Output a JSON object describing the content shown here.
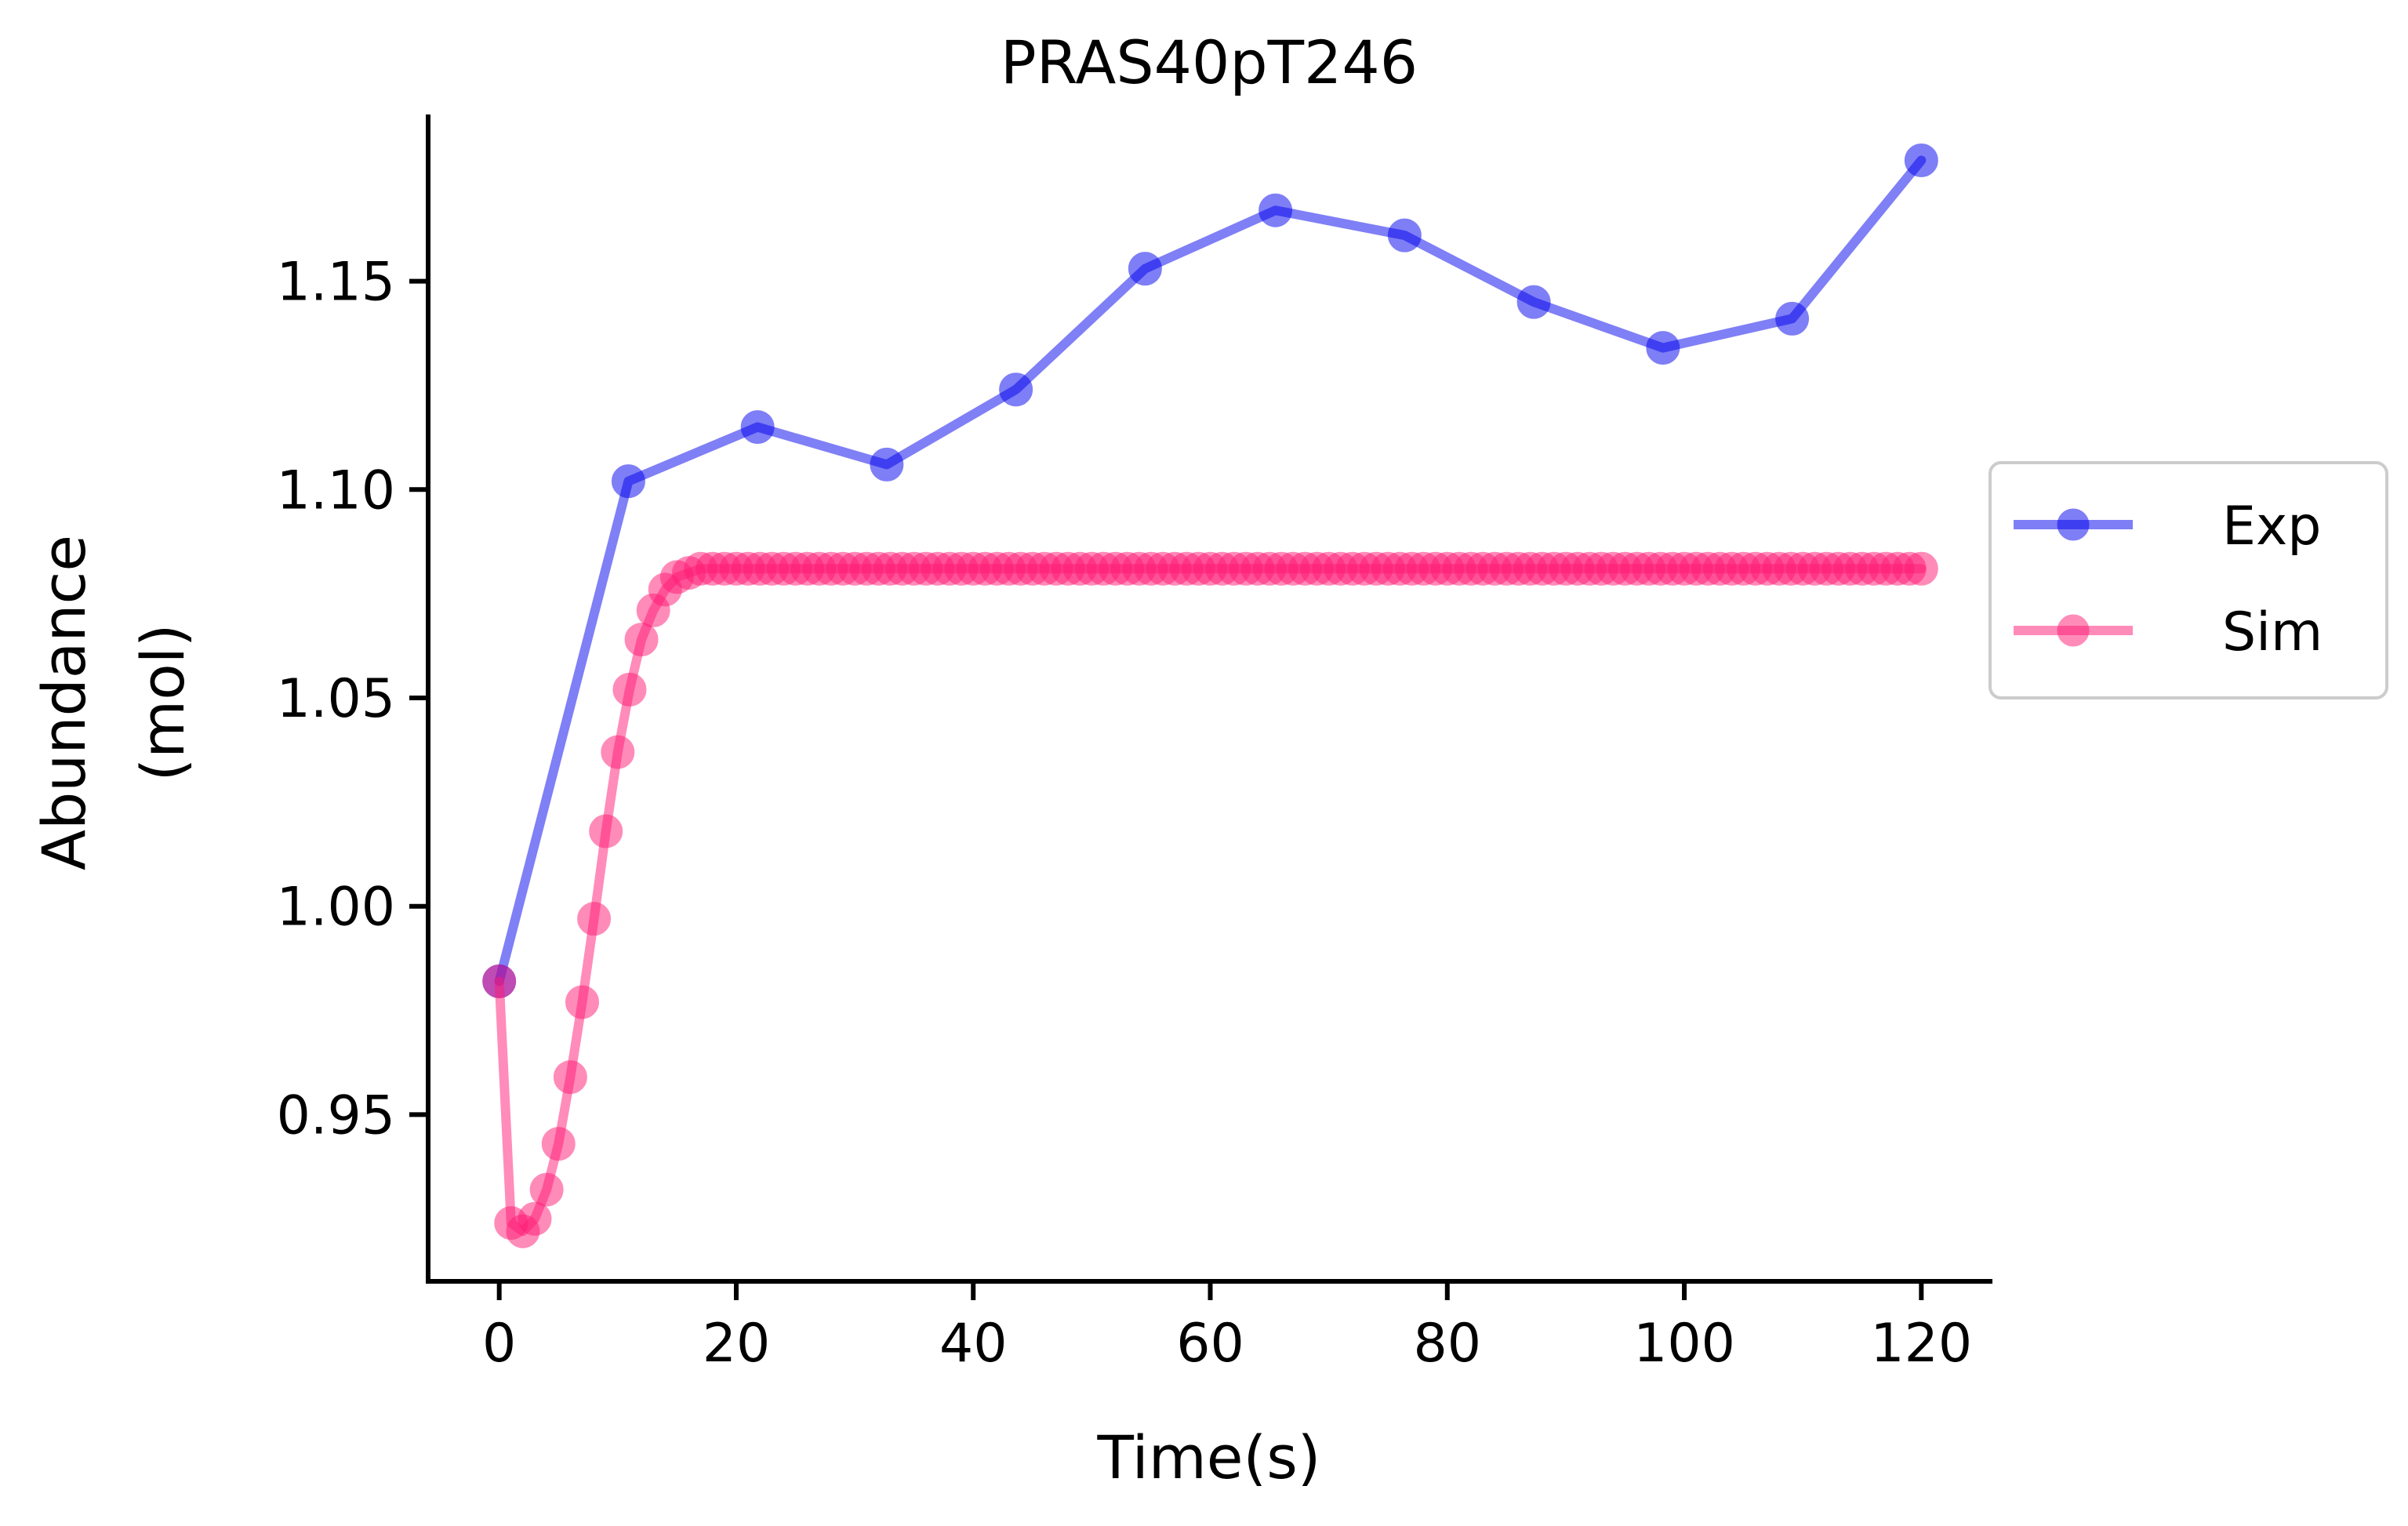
{
  "chart_data": {
    "type": "line",
    "title": "PRAS40pT246",
    "xlabel": "Time(s)",
    "ylabel": [
      "Abundance",
      "(mol)"
    ],
    "xlim": [
      -6,
      126
    ],
    "ylim": [
      0.91,
      1.19
    ],
    "x_ticks": [
      0,
      20,
      40,
      60,
      80,
      100,
      120
    ],
    "y_ticks": [
      0.95,
      1.0,
      1.05,
      1.1,
      1.15
    ],
    "x_tick_labels": [
      "0",
      "20",
      "40",
      "60",
      "80",
      "100",
      "120"
    ],
    "y_tick_labels": [
      "0.95",
      "1.00",
      "1.05",
      "1.10",
      "1.15"
    ],
    "grid": false,
    "legend_position": "center-right outside",
    "series": [
      {
        "name": "Exp",
        "color": "#0000ee",
        "x": [
          0,
          10.9,
          21.8,
          32.7,
          43.6,
          54.5,
          65.5,
          76.4,
          87.3,
          98.2,
          109.1,
          120
        ],
        "y": [
          0.982,
          1.102,
          1.115,
          1.106,
          1.124,
          1.153,
          1.167,
          1.161,
          1.145,
          1.134,
          1.141,
          1.179
        ]
      },
      {
        "name": "Sim",
        "color": "#ff1a75",
        "x": [
          0,
          1,
          2,
          3,
          4,
          5,
          6,
          7,
          8,
          9,
          10,
          11,
          12,
          13,
          14,
          15,
          16,
          17,
          18,
          19,
          20,
          21,
          22,
          23,
          24,
          25,
          26,
          27,
          28,
          29,
          30,
          31,
          32,
          33,
          34,
          35,
          36,
          37,
          38,
          39,
          40,
          41,
          42,
          43,
          44,
          45,
          46,
          47,
          48,
          49,
          50,
          51,
          52,
          53,
          54,
          55,
          56,
          57,
          58,
          59,
          60,
          61,
          62,
          63,
          64,
          65,
          66,
          67,
          68,
          69,
          70,
          71,
          72,
          73,
          74,
          75,
          76,
          77,
          78,
          79,
          80,
          81,
          82,
          83,
          84,
          85,
          86,
          87,
          88,
          89,
          90,
          91,
          92,
          93,
          94,
          95,
          96,
          97,
          98,
          99,
          100,
          101,
          102,
          103,
          104,
          105,
          106,
          107,
          108,
          109,
          110,
          111,
          112,
          113,
          114,
          115,
          116,
          117,
          118,
          119,
          120
        ],
        "y": [
          0.982,
          0.924,
          0.922,
          0.925,
          0.932,
          0.943,
          0.959,
          0.977,
          0.997,
          1.018,
          1.037,
          1.052,
          1.064,
          1.071,
          1.076,
          1.079,
          1.08,
          1.081,
          1.081,
          1.081,
          1.081,
          1.081,
          1.081,
          1.081,
          1.081,
          1.081,
          1.081,
          1.081,
          1.081,
          1.081,
          1.081,
          1.081,
          1.081,
          1.081,
          1.081,
          1.081,
          1.081,
          1.081,
          1.081,
          1.081,
          1.081,
          1.081,
          1.081,
          1.081,
          1.081,
          1.081,
          1.081,
          1.081,
          1.081,
          1.081,
          1.081,
          1.081,
          1.081,
          1.081,
          1.081,
          1.081,
          1.081,
          1.081,
          1.081,
          1.081,
          1.081,
          1.081,
          1.081,
          1.081,
          1.081,
          1.081,
          1.081,
          1.081,
          1.081,
          1.081,
          1.081,
          1.081,
          1.081,
          1.081,
          1.081,
          1.081,
          1.081,
          1.081,
          1.081,
          1.081,
          1.081,
          1.081,
          1.081,
          1.081,
          1.081,
          1.081,
          1.081,
          1.081,
          1.081,
          1.081,
          1.081,
          1.081,
          1.081,
          1.081,
          1.081,
          1.081,
          1.081,
          1.081,
          1.081,
          1.081,
          1.081,
          1.081,
          1.081,
          1.081,
          1.081,
          1.081,
          1.081,
          1.081,
          1.081,
          1.081,
          1.081,
          1.081,
          1.081,
          1.081,
          1.081,
          1.081,
          1.081,
          1.081,
          1.081,
          1.081,
          1.081
        ]
      }
    ]
  }
}
